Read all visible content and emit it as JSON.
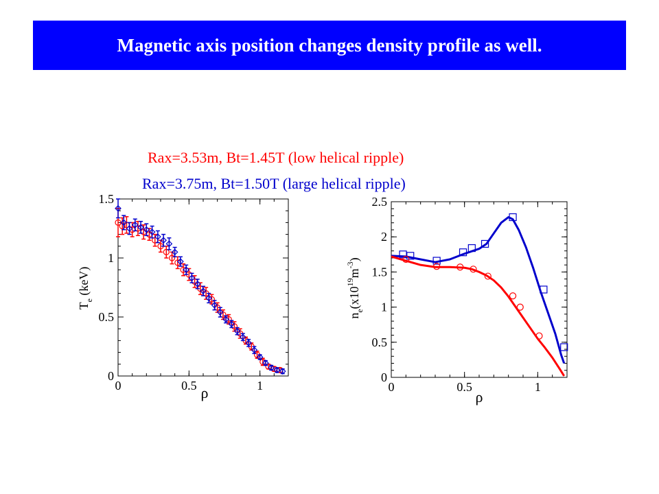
{
  "slide": {
    "title": "Magnetic axis position changes density profile as well."
  },
  "legend": {
    "red": "Rax=3.53m, Bt=1.45T (low helical ripple)",
    "blue": "Rax=3.75m, Bt=1.50T (large helical ripple)"
  },
  "colors": {
    "title_bg": "#0000ff",
    "title_text": "#ffffff",
    "red_series": "#ff0000",
    "blue_series": "#0000cc"
  },
  "chart_data": [
    {
      "type": "scatter",
      "ylabel": "T (keV)",
      "ylabel_sub": "e",
      "xlabel": "ρ",
      "xlim": [
        0,
        1.2
      ],
      "ylim": [
        0,
        1.5
      ],
      "xticks": [
        "0",
        "0.5",
        "1"
      ],
      "yticks": [
        "0",
        "0.5",
        "1",
        "1.5"
      ],
      "series": [
        {
          "color": "red",
          "marker": "circle-errorbar",
          "x": [
            0.0,
            0.03,
            0.06,
            0.1,
            0.14,
            0.18,
            0.22,
            0.26,
            0.3,
            0.34,
            0.38,
            0.42,
            0.46,
            0.5,
            0.54,
            0.58,
            0.62,
            0.66,
            0.7,
            0.74,
            0.78,
            0.82,
            0.86,
            0.9,
            0.94,
            0.98,
            1.02,
            1.06,
            1.1,
            1.14
          ],
          "y": [
            1.3,
            1.27,
            1.28,
            1.24,
            1.25,
            1.22,
            1.2,
            1.15,
            1.1,
            1.05,
            1.0,
            0.96,
            0.9,
            0.86,
            0.8,
            0.74,
            0.7,
            0.65,
            0.58,
            0.52,
            0.48,
            0.42,
            0.36,
            0.3,
            0.25,
            0.18,
            0.12,
            0.08,
            0.06,
            0.05
          ],
          "err": [
            0.12,
            0.07,
            0.07,
            0.06,
            0.06,
            0.06,
            0.05,
            0.05,
            0.05,
            0.05,
            0.05,
            0.05,
            0.05,
            0.05,
            0.05,
            0.05,
            0.05,
            0.04,
            0.04,
            0.04,
            0.04,
            0.04,
            0.04,
            0.03,
            0.03,
            0.03,
            0.03,
            0.02,
            0.02,
            0.02
          ]
        },
        {
          "color": "blue",
          "marker": "diamond-errorbar",
          "x": [
            0.0,
            0.04,
            0.08,
            0.12,
            0.16,
            0.2,
            0.24,
            0.28,
            0.32,
            0.36,
            0.4,
            0.44,
            0.48,
            0.52,
            0.56,
            0.6,
            0.64,
            0.68,
            0.72,
            0.76,
            0.8,
            0.84,
            0.88,
            0.92,
            0.96,
            1.0,
            1.04,
            1.08,
            1.12,
            1.16
          ],
          "y": [
            1.42,
            1.3,
            1.25,
            1.28,
            1.26,
            1.24,
            1.22,
            1.18,
            1.15,
            1.12,
            1.05,
            0.97,
            0.9,
            0.83,
            0.78,
            0.72,
            0.66,
            0.6,
            0.54,
            0.48,
            0.44,
            0.38,
            0.33,
            0.28,
            0.22,
            0.16,
            0.11,
            0.07,
            0.05,
            0.04
          ],
          "err": [
            0.08,
            0.06,
            0.05,
            0.05,
            0.05,
            0.05,
            0.05,
            0.05,
            0.05,
            0.05,
            0.04,
            0.04,
            0.04,
            0.04,
            0.04,
            0.04,
            0.04,
            0.04,
            0.04,
            0.03,
            0.03,
            0.03,
            0.03,
            0.03,
            0.03,
            0.02,
            0.02,
            0.02,
            0.02,
            0.02
          ]
        }
      ]
    },
    {
      "type": "line",
      "ylabel_parts": [
        "n",
        "e",
        "(x10",
        "19",
        "m",
        "-3",
        ")"
      ],
      "xlabel": "ρ",
      "xlim": [
        0,
        1.2
      ],
      "ylim": [
        0,
        2.5
      ],
      "xticks": [
        "0",
        "0.5",
        "1"
      ],
      "yticks": [
        "0",
        "0.5",
        "1",
        "1.5",
        "2",
        "2.5"
      ],
      "series": [
        {
          "color": "blue",
          "marker": "square",
          "line_x": [
            0.0,
            0.1,
            0.2,
            0.3,
            0.4,
            0.5,
            0.6,
            0.65,
            0.7,
            0.75,
            0.8,
            0.83,
            0.87,
            0.92,
            0.97,
            1.02,
            1.07,
            1.12,
            1.16,
            1.18
          ],
          "line_y": [
            1.73,
            1.72,
            1.68,
            1.64,
            1.68,
            1.76,
            1.83,
            1.9,
            2.05,
            2.2,
            2.28,
            2.25,
            2.1,
            1.85,
            1.55,
            1.22,
            0.92,
            0.62,
            0.32,
            0.2
          ],
          "points_x": [
            0.08,
            0.13,
            0.31,
            0.49,
            0.55,
            0.64,
            0.83,
            1.04,
            1.18
          ],
          "points_y": [
            1.75,
            1.73,
            1.66,
            1.78,
            1.84,
            1.9,
            2.28,
            1.25,
            0.43
          ]
        },
        {
          "color": "red",
          "marker": "circle",
          "line_x": [
            0.0,
            0.1,
            0.2,
            0.3,
            0.4,
            0.5,
            0.55,
            0.6,
            0.65,
            0.7,
            0.75,
            0.8,
            0.85,
            0.9,
            0.95,
            1.0,
            1.05,
            1.1,
            1.15,
            1.18
          ],
          "line_y": [
            1.72,
            1.66,
            1.6,
            1.57,
            1.57,
            1.56,
            1.54,
            1.5,
            1.45,
            1.38,
            1.28,
            1.15,
            1.0,
            0.85,
            0.7,
            0.55,
            0.42,
            0.28,
            0.12,
            0.02
          ],
          "points_x": [
            0.1,
            0.31,
            0.47,
            0.56,
            0.66,
            0.83,
            0.88,
            1.01
          ],
          "points_y": [
            1.68,
            1.58,
            1.57,
            1.54,
            1.44,
            1.16,
            1.0,
            0.59
          ]
        }
      ]
    }
  ]
}
